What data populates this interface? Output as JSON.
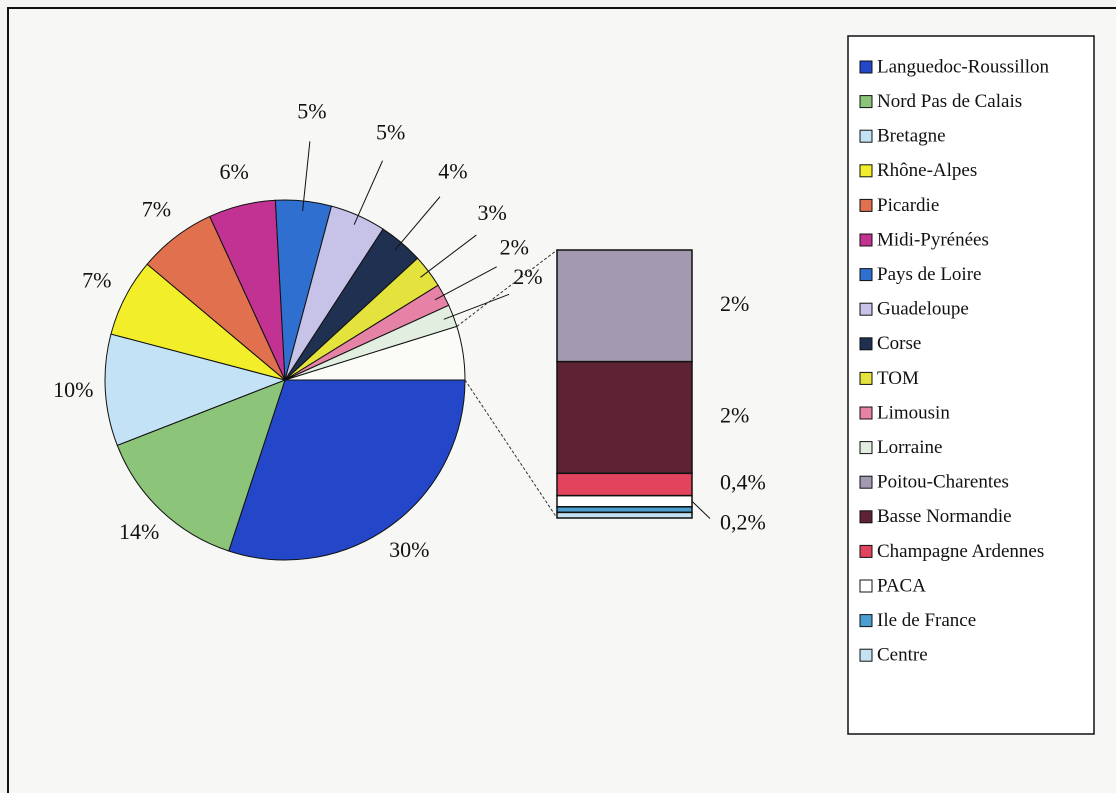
{
  "chart_data": {
    "type": "pie-of-bar",
    "pie": {
      "categories": [
        "Languedoc-Roussillon",
        "Nord Pas de Calais",
        "Bretagne",
        "Rhône-Alpes",
        "Picardie",
        "Midi-Pyrénées",
        "Pays de Loire",
        "Guadeloupe",
        "Corse",
        "TOM",
        "Limousin",
        "Lorraine"
      ],
      "values": [
        30,
        14,
        10,
        7,
        7,
        6,
        5,
        5,
        4,
        3,
        2,
        2
      ],
      "value_labels": [
        "30%",
        "14%",
        "10%",
        "7%",
        "7%",
        "6%",
        "5%",
        "5%",
        "4%",
        "3%",
        "2%",
        "2%"
      ],
      "colors": [
        "#2347c8",
        "#8cc47a",
        "#c4e2f6",
        "#f2ee2a",
        "#e0704e",
        "#c23292",
        "#2f6fd0",
        "#c6c2e8",
        "#1f3050",
        "#e4e23c",
        "#e682a6",
        "#e2eee0"
      ]
    },
    "bar": {
      "categories": [
        "Poitou-Charentes",
        "Basse Normandie",
        "Champagne Ardennes",
        "PACA",
        "Ile de France",
        "Centre"
      ],
      "values": [
        2,
        2,
        0.4,
        0.2,
        0.1,
        0.1
      ],
      "value_labels": [
        "2%",
        "2%",
        "0,4%",
        "0,2%",
        null,
        null
      ],
      "colors": [
        "#a39ab2",
        "#5e2234",
        "#e2445e",
        "#ffffff",
        "#4a9ed0",
        "#c4e2f2"
      ]
    }
  }
}
